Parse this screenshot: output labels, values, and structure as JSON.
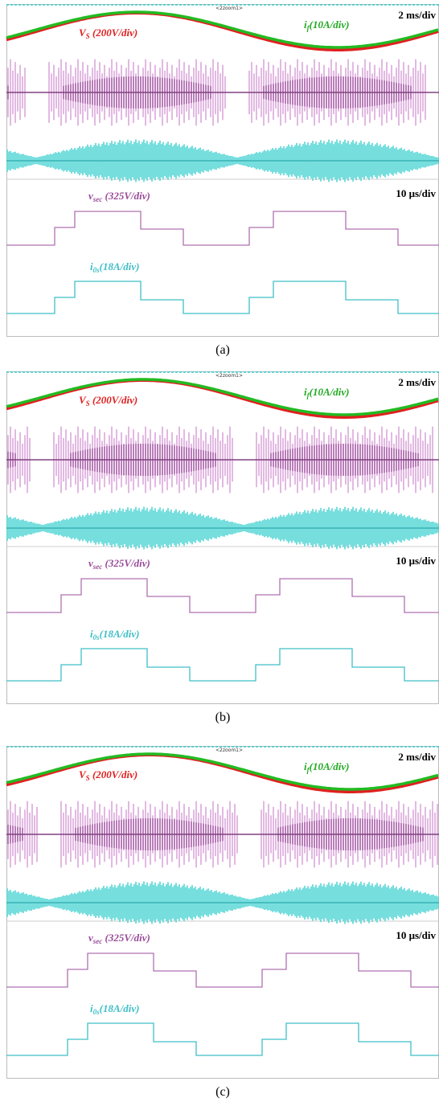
{
  "panels": [
    {
      "caption": "(a)",
      "marker": "<2zoom1>",
      "top_scale": "2 ms/div",
      "bottom_scale": "10 μs/div",
      "vs": {
        "main": "V",
        "sub": "S",
        "rest": " (200V/div)"
      },
      "if": {
        "main": "i",
        "sub": "f",
        "rest": "(10A/div)"
      },
      "vsec": {
        "main": "v",
        "sub": "sec",
        "rest": " (325V/div)"
      },
      "ios": {
        "main": "i",
        "sub": "0s",
        "rest": "(18A/div)"
      }
    },
    {
      "caption": "(b)",
      "marker": "<2zoom1>",
      "top_scale": "2 ms/div",
      "bottom_scale": "10 μs/div",
      "vs": {
        "main": "V",
        "sub": "S",
        "rest": " (200V/div)"
      },
      "if": {
        "main": "i",
        "sub": "f",
        "rest": "(10A/div)"
      },
      "vsec": {
        "main": "v",
        "sub": "sec",
        "rest": " (325V/div)"
      },
      "ios": {
        "main": "i",
        "sub": "0s",
        "rest": "(18A/div)"
      }
    },
    {
      "caption": "(c)",
      "marker": "<2zoom1>",
      "top_scale": "2 ms/div",
      "bottom_scale": "10 μs/div",
      "vs": {
        "main": "V",
        "sub": "S",
        "rest": " (200V/div)"
      },
      "if": {
        "main": "i",
        "sub": "f",
        "rest": "(10A/div)"
      },
      "vsec": {
        "main": "v",
        "sub": "sec",
        "rest": " (325V/div)"
      },
      "ios": {
        "main": "i",
        "sub": "0s",
        "rest": "(18A/div)"
      }
    }
  ]
}
